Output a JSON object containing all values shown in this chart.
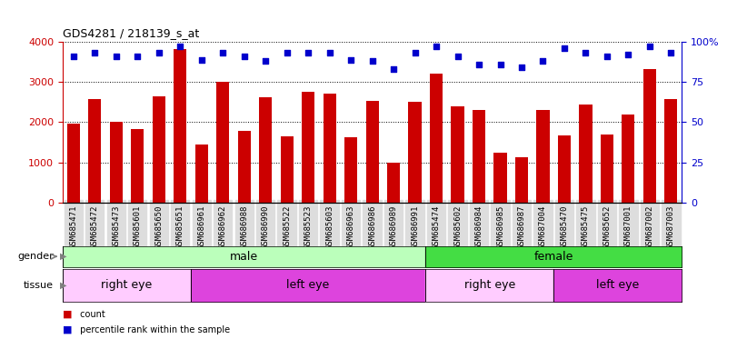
{
  "title": "GDS4281 / 218139_s_at",
  "samples": [
    "GSM685471",
    "GSM685472",
    "GSM685473",
    "GSM685601",
    "GSM685650",
    "GSM685651",
    "GSM686961",
    "GSM686962",
    "GSM686988",
    "GSM686990",
    "GSM685522",
    "GSM685523",
    "GSM685603",
    "GSM686963",
    "GSM686986",
    "GSM686989",
    "GSM686991",
    "GSM685474",
    "GSM685602",
    "GSM686984",
    "GSM686985",
    "GSM686987",
    "GSM687004",
    "GSM685470",
    "GSM685475",
    "GSM685652",
    "GSM687001",
    "GSM687002",
    "GSM687003"
  ],
  "counts": [
    1960,
    2580,
    2020,
    1820,
    2650,
    3820,
    1450,
    3000,
    1780,
    2620,
    1650,
    2750,
    2720,
    1620,
    2520,
    980,
    2500,
    3200,
    2390,
    2310,
    1250,
    1130,
    2310,
    1680,
    2440,
    1700,
    2180,
    3320,
    2580
  ],
  "percentiles": [
    91,
    93,
    91,
    91,
    93,
    97,
    89,
    93,
    91,
    88,
    93,
    93,
    93,
    89,
    88,
    83,
    93,
    97,
    91,
    86,
    86,
    84,
    88,
    96,
    93,
    91,
    92,
    97,
    93
  ],
  "bar_color": "#cc0000",
  "dot_color": "#0000cc",
  "ylim_left": [
    0,
    4000
  ],
  "ylim_right": [
    0,
    100
  ],
  "yticks_left": [
    0,
    1000,
    2000,
    3000,
    4000
  ],
  "yticks_right": [
    0,
    25,
    50,
    75,
    100
  ],
  "gender_spans": [
    {
      "label": "male",
      "start": 0,
      "end": 17,
      "color": "#bbffbb"
    },
    {
      "label": "female",
      "start": 17,
      "end": 29,
      "color": "#44dd44"
    }
  ],
  "tissue_spans": [
    {
      "label": "right eye",
      "start": 0,
      "end": 6,
      "color": "#ffccff"
    },
    {
      "label": "left eye",
      "start": 6,
      "end": 17,
      "color": "#dd44dd"
    },
    {
      "label": "right eye",
      "start": 17,
      "end": 23,
      "color": "#ffccff"
    },
    {
      "label": "left eye",
      "start": 23,
      "end": 29,
      "color": "#dd44dd"
    }
  ]
}
